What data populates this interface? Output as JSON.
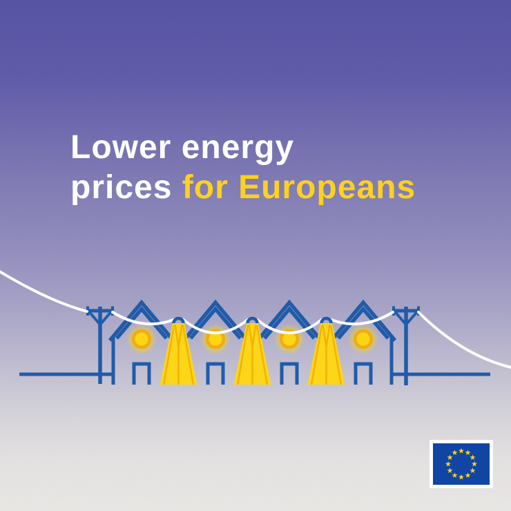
{
  "title": {
    "line1": "Lower energy",
    "line2_white": "prices ",
    "line2_yellow": "for Europeans"
  },
  "colors": {
    "background_top": "#5350a3",
    "background_bottom": "#eae8e5",
    "title_white": "#ffffff",
    "accent_yellow": "#ffd21a",
    "illustration_blue": "#1b58a8",
    "beam_yellow": "#ffd713",
    "beam_ray_orange": "#f6b102",
    "glow_ring_amber": "#f3ad05",
    "glow_disc_yellow": "#ffd60e",
    "wire_white": "#ffffff",
    "flag_blue": "#0b41a3",
    "flag_star_yellow": "#ffd617",
    "flag_border_white": "#ffffff"
  },
  "illustration": {
    "description": "Row of houses with glowing lights and street lamps beaming light, connected by sagging power lines between two utility poles",
    "houses": 4,
    "street_lamps": 3,
    "utility_poles": 2,
    "glowing_lights": 4
  },
  "footer": {
    "eu_flag": {
      "label": "european-union-flag",
      "stars": 12
    }
  }
}
